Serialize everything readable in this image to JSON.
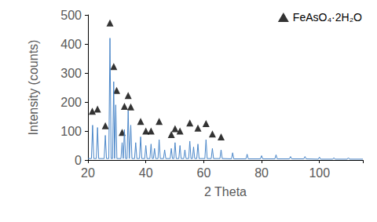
{
  "chart_data": {
    "type": "line",
    "x_label": "2 Theta",
    "y_label": "Intensity (counts)",
    "xlim": [
      20,
      115
    ],
    "xticks": [
      20,
      40,
      60,
      80,
      100
    ],
    "ylim": [
      0,
      500
    ],
    "yticks": [
      0,
      100,
      200,
      300,
      400,
      500
    ],
    "grid": false,
    "legend": "upper right",
    "series": [
      {
        "type": "line",
        "line_style": "solid",
        "color": "#4a86c8",
        "x": [
          20,
          21.2,
          21.6,
          22.0,
          22.9,
          23.3,
          23.7,
          25.6,
          26.0,
          26.4,
          27.2,
          27.6,
          28.0,
          28.5,
          28.9,
          29.2,
          29.6,
          30.0,
          31.4,
          31.8,
          32.2,
          32.6,
          33.0,
          33.5,
          33.9,
          34.3,
          34.8,
          35.2,
          36.1,
          36.5,
          36.9,
          37.8,
          38.2,
          38.6,
          39.6,
          40.0,
          40.4,
          41.4,
          41.8,
          42.2,
          42.6,
          43.0,
          43.4,
          44.2,
          44.6,
          45.0,
          46.1,
          46.5,
          46.9,
          48.4,
          48.8,
          49.2,
          49.7,
          50.1,
          50.5,
          51.4,
          51.8,
          52.2,
          53.1,
          53.5,
          53.9,
          54.8,
          55.2,
          55.6,
          56.1,
          56.5,
          56.9,
          57.6,
          58.0,
          58.4,
          60.4,
          60.8,
          61.2,
          62.6,
          63.0,
          63.4,
          65.6,
          66.0,
          66.4,
          69.6,
          70.0,
          70.4,
          74.6,
          75.0,
          75.4,
          79.6,
          80.0,
          80.4,
          84.6,
          85.0,
          85.4,
          89.6,
          90.0,
          90.4,
          94.6,
          95.0,
          95.4,
          99.6,
          100.0,
          100.4,
          104.6,
          105.0,
          105.4,
          109.6,
          110.0,
          110.4,
          115
        ],
        "values": [
          5,
          5,
          120,
          5,
          5,
          112,
          5,
          5,
          85,
          5,
          5,
          420,
          5,
          5,
          270,
          5,
          190,
          5,
          5,
          60,
          5,
          105,
          5,
          5,
          170,
          5,
          120,
          5,
          5,
          60,
          5,
          5,
          80,
          5,
          5,
          50,
          5,
          5,
          55,
          5,
          5,
          40,
          5,
          5,
          70,
          5,
          5,
          35,
          5,
          5,
          40,
          5,
          5,
          60,
          5,
          5,
          50,
          5,
          5,
          35,
          5,
          5,
          65,
          5,
          5,
          45,
          5,
          5,
          55,
          5,
          5,
          70,
          5,
          5,
          40,
          5,
          5,
          35,
          5,
          4,
          25,
          4,
          4,
          20,
          4,
          4,
          15,
          4,
          4,
          18,
          4,
          4,
          12,
          4,
          4,
          12,
          4,
          3,
          10,
          3,
          3,
          8,
          3,
          3,
          8,
          3,
          3
        ]
      },
      {
        "name": "FeAsO₄·2H₂O",
        "type": "scatter",
        "marker": "triangle",
        "color": "#000000",
        "x": [
          21.5,
          23.3,
          26.0,
          27.6,
          28.9,
          29.9,
          31.8,
          32.6,
          33.9,
          34.8,
          38.2,
          40.0,
          41.8,
          44.6,
          48.8,
          50.1,
          51.8,
          55.2,
          58.0,
          60.8,
          63.0,
          66.0
        ],
        "values": [
          168,
          176,
          118,
          472,
          322,
          240,
          95,
          185,
          222,
          183,
          133,
          100,
          100,
          133,
          88,
          108,
          100,
          128,
          110,
          126,
          90,
          80
        ]
      }
    ]
  }
}
